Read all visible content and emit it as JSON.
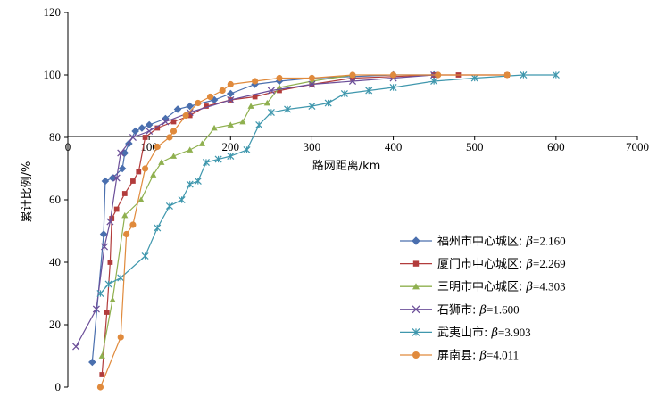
{
  "chart_data": {
    "type": "line",
    "xlabel": "路网距离/km",
    "ylabel": "累计比例/%",
    "xlim": [
      0,
      700
    ],
    "ylim": [
      0,
      120
    ],
    "x_ticks": [
      "0",
      "100",
      "200",
      "300",
      "400",
      "500",
      "600",
      "7000"
    ],
    "y_ticks": [
      "0",
      "20",
      "40",
      "60",
      "80",
      "100",
      "120"
    ],
    "grid": false,
    "legend_position": "bottom-right",
    "series": [
      {
        "name": "福州市中心城区: β=2.160",
        "name_prefix": "福州市中心城区: ",
        "beta_symbol": "β",
        "beta_value": "=2.160",
        "color": "#4a6fae",
        "marker": "diamond",
        "points": [
          [
            30,
            8
          ],
          [
            44,
            49
          ],
          [
            46,
            66
          ],
          [
            55,
            67
          ],
          [
            67,
            70
          ],
          [
            70,
            75
          ],
          [
            75,
            78
          ],
          [
            83,
            82
          ],
          [
            91,
            83
          ],
          [
            100,
            84
          ],
          [
            120,
            86
          ],
          [
            135,
            89
          ],
          [
            150,
            90
          ],
          [
            180,
            92
          ],
          [
            200,
            94
          ],
          [
            230,
            97
          ],
          [
            260,
            98
          ],
          [
            300,
            99
          ],
          [
            350,
            99.5
          ],
          [
            400,
            100
          ],
          [
            450,
            100
          ]
        ]
      },
      {
        "name": "厦门市中心城区: β=2.269",
        "name_prefix": "厦门市中心城区: ",
        "beta_symbol": "β",
        "beta_value": "=2.269",
        "color": "#b23c3c",
        "marker": "square",
        "points": [
          [
            42,
            4
          ],
          [
            48,
            24
          ],
          [
            52,
            40
          ],
          [
            54,
            54
          ],
          [
            60,
            57
          ],
          [
            70,
            62
          ],
          [
            80,
            66
          ],
          [
            87,
            69
          ],
          [
            95,
            80
          ],
          [
            110,
            83
          ],
          [
            130,
            85
          ],
          [
            150,
            87
          ],
          [
            170,
            90
          ],
          [
            200,
            92
          ],
          [
            230,
            93
          ],
          [
            260,
            95
          ],
          [
            300,
            97
          ],
          [
            350,
            99
          ],
          [
            400,
            99.5
          ],
          [
            450,
            100
          ],
          [
            480,
            100
          ],
          [
            540,
            100
          ]
        ]
      },
      {
        "name": "三明市中心城区: β=4.303",
        "name_prefix": "三明市中心城区: ",
        "beta_symbol": "β",
        "beta_value": "=4.303",
        "color": "#8fb04f",
        "marker": "triangle",
        "points": [
          [
            42,
            10
          ],
          [
            55,
            28
          ],
          [
            70,
            55
          ],
          [
            90,
            60
          ],
          [
            105,
            68
          ],
          [
            115,
            72
          ],
          [
            130,
            74
          ],
          [
            150,
            76
          ],
          [
            165,
            78
          ],
          [
            180,
            83
          ],
          [
            200,
            84
          ],
          [
            215,
            85
          ],
          [
            225,
            90
          ],
          [
            245,
            91
          ],
          [
            260,
            96
          ],
          [
            300,
            98
          ],
          [
            350,
            100
          ]
        ]
      },
      {
        "name": "石狮市: β=1.600",
        "name_prefix": "石狮市: ",
        "beta_symbol": "β",
        "beta_value": "=1.600",
        "color": "#6c4f99",
        "marker": "x",
        "points": [
          [
            10,
            13
          ],
          [
            35,
            25
          ],
          [
            45,
            45
          ],
          [
            52,
            53
          ],
          [
            60,
            67
          ],
          [
            65,
            75
          ],
          [
            80,
            80
          ],
          [
            100,
            82
          ],
          [
            120,
            85
          ],
          [
            150,
            88
          ],
          [
            200,
            92
          ],
          [
            250,
            95
          ],
          [
            300,
            97
          ],
          [
            350,
            98
          ],
          [
            400,
            99
          ],
          [
            450,
            100
          ]
        ]
      },
      {
        "name": "武夷山市: β=3.903",
        "name_prefix": "武夷山市: ",
        "beta_symbol": "β",
        "beta_value": "=3.903",
        "color": "#3f97ad",
        "marker": "star",
        "points": [
          [
            40,
            30
          ],
          [
            50,
            33
          ],
          [
            65,
            35
          ],
          [
            95,
            42
          ],
          [
            110,
            51
          ],
          [
            125,
            58
          ],
          [
            140,
            60
          ],
          [
            150,
            65
          ],
          [
            160,
            66
          ],
          [
            170,
            72
          ],
          [
            185,
            73
          ],
          [
            200,
            74
          ],
          [
            220,
            76
          ],
          [
            235,
            84
          ],
          [
            250,
            88
          ],
          [
            270,
            89
          ],
          [
            300,
            90
          ],
          [
            320,
            91
          ],
          [
            340,
            94
          ],
          [
            370,
            95
          ],
          [
            400,
            96
          ],
          [
            450,
            98
          ],
          [
            500,
            99
          ],
          [
            560,
            100
          ],
          [
            600,
            100
          ]
        ]
      },
      {
        "name": "屏南县: β=4.011",
        "name_prefix": "屏南县: ",
        "beta_symbol": "β",
        "beta_value": "=4.011",
        "color": "#e08a3c",
        "marker": "circle",
        "points": [
          [
            40,
            0
          ],
          [
            65,
            16
          ],
          [
            72,
            49
          ],
          [
            80,
            52
          ],
          [
            95,
            70
          ],
          [
            110,
            77
          ],
          [
            125,
            80
          ],
          [
            130,
            82
          ],
          [
            145,
            87
          ],
          [
            160,
            91
          ],
          [
            175,
            93
          ],
          [
            190,
            95
          ],
          [
            200,
            97
          ],
          [
            230,
            98
          ],
          [
            260,
            99
          ],
          [
            300,
            99
          ],
          [
            350,
            100
          ],
          [
            400,
            100
          ],
          [
            455,
            100
          ],
          [
            540,
            100
          ]
        ]
      }
    ]
  }
}
